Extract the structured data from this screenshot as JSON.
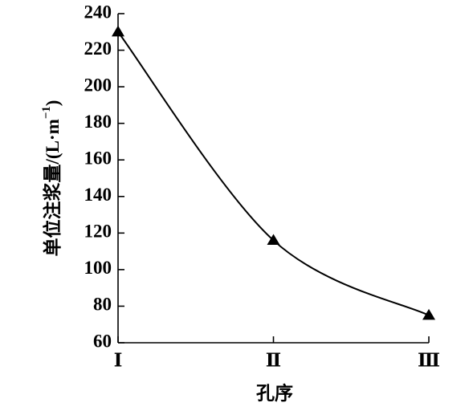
{
  "chart_data": {
    "type": "line",
    "x_label": "孔序",
    "y_label": [
      "单位注浆量/(L·m",
      "−1",
      ")"
    ],
    "categories": [
      "Ⅰ",
      "Ⅱ",
      "Ⅲ"
    ],
    "series": [
      {
        "name": null,
        "color": "#000000",
        "values": [
          230,
          116,
          75
        ]
      }
    ],
    "ylim": [
      60,
      240
    ],
    "yticks": [
      60,
      80,
      100,
      120,
      140,
      160,
      180,
      200,
      220,
      240
    ],
    "grid": false,
    "smooth": true,
    "marker": "triangle"
  }
}
